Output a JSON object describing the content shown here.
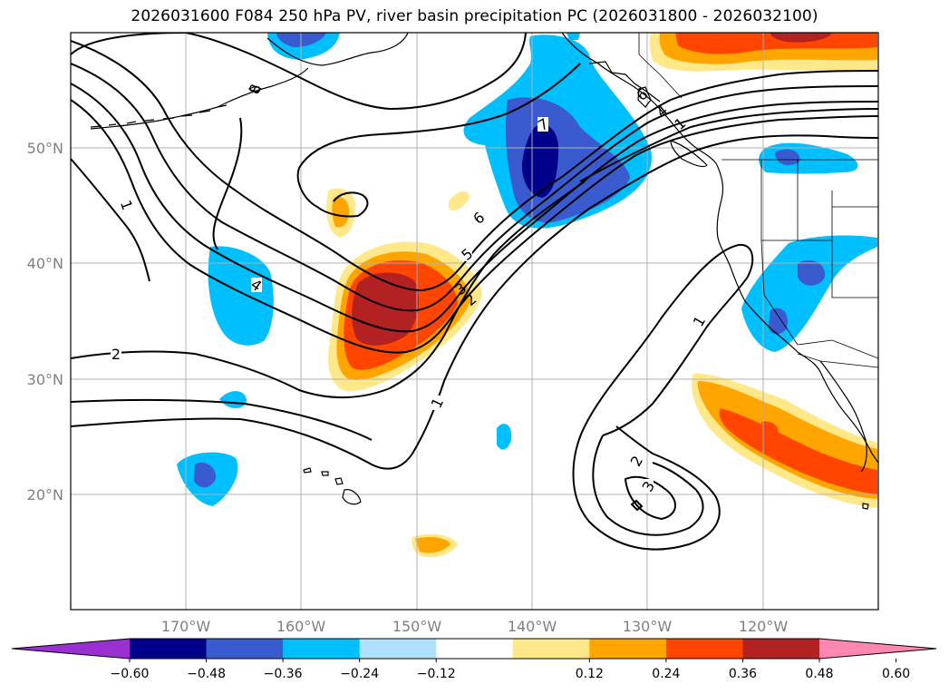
{
  "title": "2026031600 F084 250 hPa PV, river basin precipitation PC (2026031800 - 2026032100)",
  "lat_labels": [
    "50°N",
    "40°N",
    "30°N",
    "20°N"
  ],
  "lon_labels": [
    "170°W",
    "160°W",
    "150°W",
    "140°W",
    "130°W",
    "120°W"
  ],
  "pv_contour_labels": [
    "1",
    "2",
    "4",
    "6",
    "5",
    "3",
    "2",
    "7",
    "1",
    "1",
    "2",
    "3",
    "8",
    "6",
    "4",
    "1"
  ],
  "colorbar": {
    "ticks": [
      "−0.60",
      "−0.48",
      "−0.36",
      "−0.24",
      "−0.12",
      "0.12",
      "0.24",
      "0.36",
      "0.48",
      "0.60"
    ],
    "colors": [
      "#9b30d0",
      "#00008b",
      "#3a5bcf",
      "#00bfff",
      "#b0e0fa",
      "#ffffff",
      "#ffe88a",
      "#ffa500",
      "#ff4500",
      "#b22222",
      "#ff86b0"
    ]
  },
  "colors": {
    "neg_strong": "#00008b",
    "neg_mid": "#3a5bcf",
    "neg_light": "#00bfff",
    "neg_pale": "#b0e0fa",
    "pos_pale": "#ffe88a",
    "pos_light": "#ffa500",
    "pos_mid": "#ff4500",
    "pos_strong": "#b22222"
  }
}
